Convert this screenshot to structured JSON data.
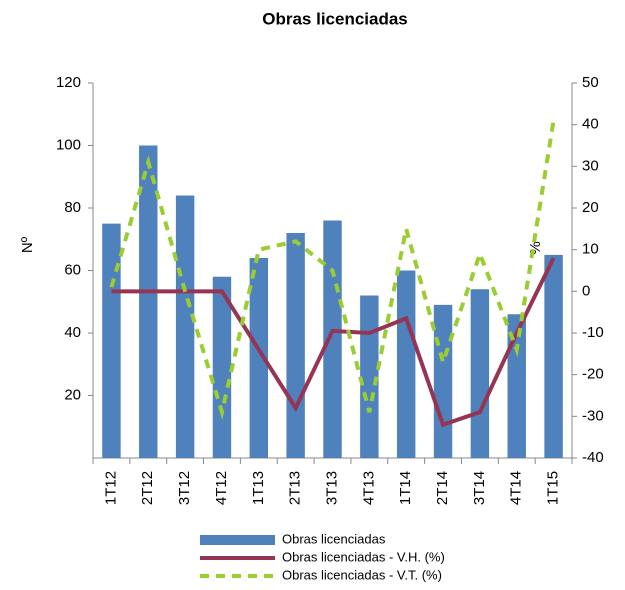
{
  "chart_data": {
    "type": "bar-line",
    "title": "Obras licenciadas",
    "ylabel": "Nº",
    "y2label": "%",
    "categories": [
      "1T12",
      "2T12",
      "3T12",
      "4T12",
      "1T13",
      "2T13",
      "3T13",
      "4T13",
      "1T14",
      "2T14",
      "3T14",
      "4T14",
      "1T15"
    ],
    "series": [
      {
        "name": "Obras licenciadas",
        "type": "bar",
        "color": "#4f81bd",
        "values": [
          75,
          100,
          84,
          58,
          64,
          72,
          76,
          52,
          60,
          49,
          54,
          46,
          65
        ]
      },
      {
        "name": "Obras licenciadas - V.H. (%)",
        "type": "line",
        "axis": "y2",
        "color": "#953553",
        "values": [
          0,
          0,
          0,
          0,
          -14,
          -28,
          -9.5,
          -10,
          -6.5,
          -32,
          -29,
          -10,
          8
        ]
      },
      {
        "name": "Obras licenciadas - V.T. (%)",
        "type": "dashed",
        "axis": "y2",
        "color": "#9acd32",
        "values": [
          1,
          31,
          0,
          -29,
          10,
          12,
          5,
          -29,
          15,
          -17,
          9,
          -14,
          41
        ]
      }
    ],
    "ylim": [
      0,
      120
    ],
    "yticks": [
      20,
      40,
      60,
      80,
      100,
      120
    ],
    "y2lim": [
      -40,
      50
    ],
    "y2ticks": [
      -40,
      -30,
      -20,
      -10,
      0,
      10,
      20,
      30,
      40,
      50
    ]
  }
}
